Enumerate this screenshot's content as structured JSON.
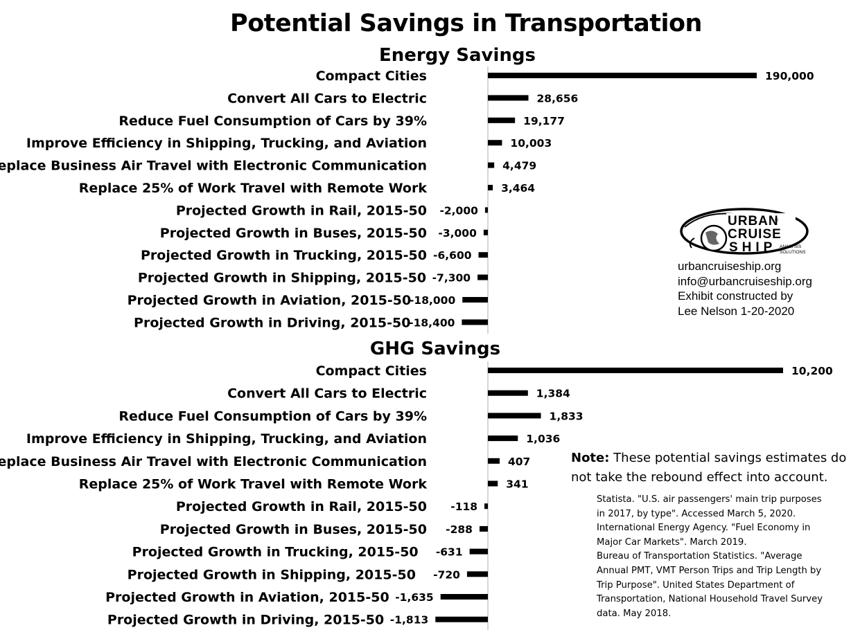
{
  "title": "Potential Savings in Transportation",
  "colors": {
    "bar": "#000000",
    "axis": "#c8c8c8",
    "text": "#000000"
  },
  "chart_data": [
    {
      "type": "bar",
      "orientation": "horizontal",
      "title": "Energy Savings",
      "categories": [
        "Compact Cities",
        "Convert All Cars to Electric",
        "Reduce Fuel Consumption of Cars by 39%",
        "Improve Efficiency in Shipping, Trucking, and Aviation",
        "Replace Business Air Travel with Electronic Communication",
        "Replace 25% of Work Travel with Remote Work",
        "Projected Growth in Rail, 2015-50",
        "Projected Growth in Buses, 2015-50",
        "Projected Growth in Trucking, 2015-50",
        "Projected Growth in Shipping, 2015-50",
        "Projected Growth in Aviation, 2015-50",
        "Projected Growth in Driving, 2015-50"
      ],
      "values": [
        190000,
        28656,
        19177,
        10003,
        4479,
        3464,
        -2000,
        -3000,
        -6600,
        -7300,
        -18000,
        -18400
      ],
      "labels": [
        "190,000",
        "28,656",
        "19,177",
        "10,003",
        "4,479",
        "3,464",
        "-2,000",
        "-3,000",
        "-6,600",
        "-7,300",
        "-18,000",
        "-18,400"
      ],
      "xlim": [
        -19000,
        190000
      ]
    },
    {
      "type": "bar",
      "orientation": "horizontal",
      "title": "GHG Savings",
      "categories": [
        "Compact Cities",
        "Convert All Cars to Electric",
        "Reduce Fuel Consumption of Cars by 39%",
        "Improve Efficiency in Shipping, Trucking, and Aviation",
        "Replace Business Air Travel with Electronic Communication",
        "Replace 25% of Work Travel with Remote Work",
        "Projected Growth in Rail, 2015-50",
        "Projected Growth in Buses, 2015-50",
        "Projected Growth in Trucking, 2015-50",
        "Projected Growth in Shipping, 2015-50",
        "Projected Growth in Aviation, 2015-50",
        "Projected Growth in Driving, 2015-50"
      ],
      "values": [
        10200,
        1384,
        1833,
        1036,
        407,
        341,
        -118,
        -288,
        -631,
        -720,
        -1635,
        -1813
      ],
      "labels": [
        "10,200",
        "1,384",
        "1,833",
        "1,036",
        "407",
        "341",
        "-118",
        "-288",
        "-631",
        "-720",
        "-1,635",
        "-1,813"
      ],
      "xlim": [
        -1900,
        10200
      ]
    }
  ],
  "logo": {
    "line1": "URBAN",
    "line2": "CRUISE",
    "line3": "SHIP",
    "tag1": "ANALYSIS",
    "tag2": "SOLUTIONS",
    "registered": "®"
  },
  "contact": [
    "urbancruiseship.org",
    "info@urbancruiseship.org",
    "Exhibit constructed by",
    "Lee Nelson 1-20-2020"
  ],
  "note": {
    "label": "Note:",
    "text": " These potential savings estimates do not take the rebound effect into account."
  },
  "sources": [
    "Statista. \"U.S. air passengers' main trip purposes in 2017, by type\". Accessed March 5, 2020.",
    "International Energy Agency. \"Fuel Economy in Major Car Markets\". March 2019.",
    "Bureau of Transportation Statistics. \"Average Annual PMT, VMT Person Trips and Trip Length by Trip Purpose\". United States Department of Transportation, National Household Travel Survey data. May 2018."
  ]
}
